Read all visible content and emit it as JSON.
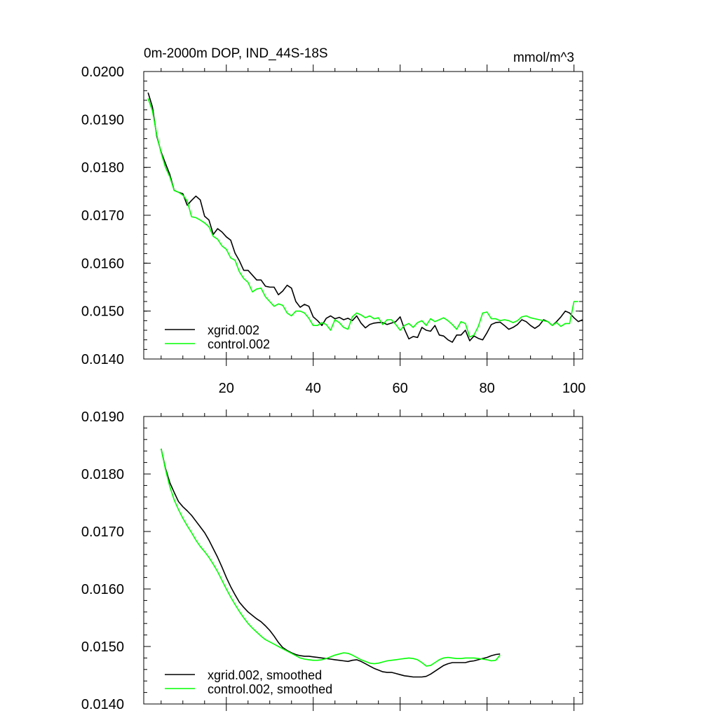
{
  "chart_data": [
    {
      "type": "line",
      "title": "0m-2000m DOP, IND_44S-18S",
      "units_label": "mmol/m^3",
      "xlim": [
        1,
        102
      ],
      "ylim": [
        0.014,
        0.02
      ],
      "x_ticks": [
        20,
        40,
        60,
        80,
        100
      ],
      "x_tick_labels": [
        "20",
        "40",
        "60",
        "80",
        "100"
      ],
      "y_ticks": [
        0.014,
        0.015,
        0.016,
        0.017,
        0.018,
        0.019,
        0.02
      ],
      "y_tick_labels": [
        "0.0140",
        "0.0150",
        "0.0160",
        "0.0170",
        "0.0180",
        "0.0190",
        "0.0200"
      ],
      "x_start": 2,
      "series": [
        {
          "name": "xgrid.002",
          "color": "#000000",
          "values": [
            0.01956,
            0.01926,
            0.01865,
            0.01832,
            0.01808,
            0.01785,
            0.01752,
            0.01748,
            0.01745,
            0.01721,
            0.01731,
            0.0174,
            0.01732,
            0.01698,
            0.0169,
            0.0166,
            0.01672,
            0.01665,
            0.01655,
            0.01648,
            0.01621,
            0.01605,
            0.01585,
            0.01585,
            0.01575,
            0.01565,
            0.01565,
            0.01552,
            0.0155,
            0.0155,
            0.01534,
            0.01542,
            0.01554,
            0.01548,
            0.0152,
            0.01508,
            0.01514,
            0.0151,
            0.01488,
            0.0148,
            0.0147,
            0.01485,
            0.0149,
            0.01484,
            0.01487,
            0.01482,
            0.01485,
            0.0148,
            0.0149,
            0.01475,
            0.01465,
            0.01472,
            0.01475,
            0.01476,
            0.01476,
            0.01472,
            0.01475,
            0.01478,
            0.01488,
            0.01462,
            0.01442,
            0.01447,
            0.01445,
            0.01466,
            0.0146,
            0.01458,
            0.0147,
            0.0145,
            0.01448,
            0.0144,
            0.01435,
            0.0145,
            0.0145,
            0.0146,
            0.01438,
            0.01448,
            0.01443,
            0.0144,
            0.01455,
            0.01472,
            0.01476,
            0.01477,
            0.0147,
            0.01462,
            0.01466,
            0.01472,
            0.01482,
            0.01478,
            0.0147,
            0.01464,
            0.0147,
            0.01482,
            0.01478,
            0.0147,
            0.01478,
            0.01488,
            0.015,
            0.01496,
            0.01486,
            0.01478,
            0.01482
          ]
        },
        {
          "name": "control.002",
          "color": "#00ff00",
          "values": [
            0.01944,
            0.01918,
            0.01868,
            0.0183,
            0.018,
            0.0178,
            0.01752,
            0.01748,
            0.01742,
            0.0173,
            0.01697,
            0.01695,
            0.0169,
            0.01684,
            0.01676,
            0.01656,
            0.0165,
            0.01636,
            0.01629,
            0.01611,
            0.01606,
            0.01582,
            0.01568,
            0.0156,
            0.0154,
            0.01546,
            0.01548,
            0.0153,
            0.0152,
            0.0151,
            0.01515,
            0.01512,
            0.01496,
            0.0149,
            0.015,
            0.015,
            0.01496,
            0.01485,
            0.0147,
            0.0147,
            0.01476,
            0.01472,
            0.0146,
            0.01482,
            0.01476,
            0.01466,
            0.01462,
            0.01488,
            0.01496,
            0.01492,
            0.01486,
            0.0149,
            0.01484,
            0.01486,
            0.01472,
            0.01482,
            0.01482,
            0.01472,
            0.0146,
            0.0147,
            0.01474,
            0.01466,
            0.01476,
            0.0148,
            0.0147,
            0.01484,
            0.01478,
            0.01482,
            0.01486,
            0.0148,
            0.01472,
            0.01462,
            0.01478,
            0.01474,
            0.01446,
            0.0145,
            0.01468,
            0.01496,
            0.01498,
            0.01484,
            0.01484,
            0.0148,
            0.01482,
            0.0148,
            0.01476,
            0.0148,
            0.01488,
            0.0149,
            0.01486,
            0.01484,
            0.01482,
            0.0148,
            0.01478,
            0.0147,
            0.01476,
            0.01468,
            0.01474,
            0.01474,
            0.0152,
            0.0152
          ]
        }
      ]
    },
    {
      "type": "line",
      "title": "",
      "xlim": [
        1,
        102
      ],
      "ylim": [
        0.014,
        0.019
      ],
      "x_ticks": [
        20,
        40,
        60,
        80,
        100
      ],
      "x_tick_labels": [
        "",
        "",
        "",
        "",
        ""
      ],
      "y_ticks": [
        0.014,
        0.015,
        0.016,
        0.017,
        0.018,
        0.019
      ],
      "y_tick_labels": [
        "0.0140",
        "0.0150",
        "0.0160",
        "0.0170",
        "0.0180",
        "0.0190"
      ],
      "x_start": 5,
      "series": [
        {
          "name": "xgrid.002, smoothed",
          "color": "#000000",
          "values": [
            0.01844,
            0.0181,
            0.01785,
            0.01768,
            0.01752,
            0.01743,
            0.01736,
            0.01728,
            0.01718,
            0.01708,
            0.01698,
            0.01685,
            0.0167,
            0.01655,
            0.01638,
            0.0162,
            0.01604,
            0.0159,
            0.01577,
            0.01568,
            0.0156,
            0.01554,
            0.01548,
            0.01543,
            0.01536,
            0.01528,
            0.01518,
            0.01507,
            0.01498,
            0.01493,
            0.01489,
            0.01486,
            0.01484,
            0.01483,
            0.01483,
            0.01482,
            0.01481,
            0.0148,
            0.01479,
            0.01478,
            0.01477,
            0.01476,
            0.01475,
            0.01474,
            0.01476,
            0.01477,
            0.01474,
            0.0147,
            0.01466,
            0.01462,
            0.01459,
            0.01456,
            0.01455,
            0.01455,
            0.01453,
            0.01451,
            0.01449,
            0.01448,
            0.01447,
            0.01447,
            0.01447,
            0.01448,
            0.01452,
            0.01457,
            0.01462,
            0.01467,
            0.0147,
            0.01472,
            0.01472,
            0.01472,
            0.01472,
            0.01474,
            0.01475,
            0.01477,
            0.01479,
            0.01481,
            0.01484,
            0.01486,
            0.01487
          ]
        },
        {
          "name": "control.002, smoothed",
          "color": "#00ff00",
          "values": [
            0.01844,
            0.01808,
            0.01778,
            0.01755,
            0.01738,
            0.01723,
            0.0171,
            0.01698,
            0.01685,
            0.01674,
            0.01665,
            0.01655,
            0.01643,
            0.0163,
            0.01615,
            0.016,
            0.01586,
            0.01573,
            0.01561,
            0.0155,
            0.0154,
            0.01532,
            0.01525,
            0.01518,
            0.01512,
            0.01508,
            0.01504,
            0.015,
            0.01496,
            0.01492,
            0.01488,
            0.01484,
            0.0148,
            0.01478,
            0.01477,
            0.01476,
            0.01476,
            0.01477,
            0.01479,
            0.01482,
            0.01485,
            0.01487,
            0.01489,
            0.01488,
            0.01485,
            0.01481,
            0.01477,
            0.01474,
            0.01471,
            0.0147,
            0.01471,
            0.01473,
            0.01475,
            0.01476,
            0.01477,
            0.01478,
            0.01479,
            0.0148,
            0.01479,
            0.01477,
            0.01472,
            0.01466,
            0.01467,
            0.01472,
            0.01477,
            0.0148,
            0.01481,
            0.0148,
            0.01479,
            0.01479,
            0.0148,
            0.0148,
            0.0148,
            0.01479,
            0.01478,
            0.01477,
            0.01475,
            0.01476,
            0.01485
          ]
        }
      ]
    }
  ]
}
